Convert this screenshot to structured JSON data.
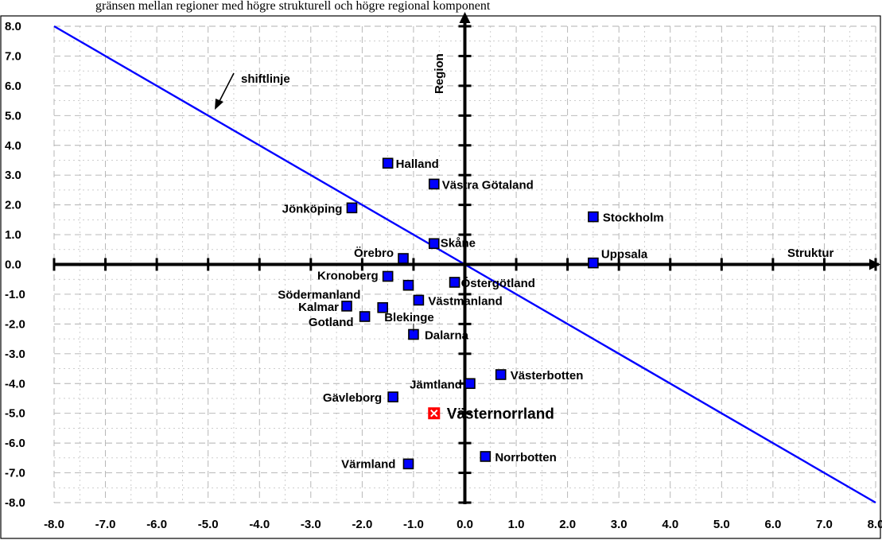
{
  "header": {
    "caption": "gränsen mellan regioner med högre strukturell och högre regional komponent"
  },
  "colors": {
    "shift_line": "#0000ff",
    "marker_fill": "#0000ff",
    "marker_stroke": "#000000",
    "highlight_fill": "#ff0000",
    "axis": "#000000",
    "grid": "#b0b0b0"
  },
  "chart_data": {
    "type": "scatter",
    "title": "",
    "xlabel": "Struktur",
    "ylabel": "Region",
    "xlim": [
      -8,
      8
    ],
    "ylim": [
      -8,
      8
    ],
    "grid": true,
    "x_ticks": [
      "-8.0",
      "-7.0",
      "-6.0",
      "-5.0",
      "-4.0",
      "-3.0",
      "-2.0",
      "-1.0",
      "0.0",
      "1.0",
      "2.0",
      "3.0",
      "4.0",
      "5.0",
      "6.0",
      "7.0",
      "8.0"
    ],
    "y_ticks": [
      "8.0",
      "7.0",
      "6.0",
      "5.0",
      "4.0",
      "3.0",
      "2.0",
      "1.0",
      "0.0",
      "-1.0",
      "-2.0",
      "-3.0",
      "-4.0",
      "-5.0",
      "-6.0",
      "-7.0",
      "-8.0"
    ],
    "points": [
      {
        "label": "Halland",
        "x": -1.5,
        "y": 3.4
      },
      {
        "label": "Västra Götaland",
        "x": -0.6,
        "y": 2.7
      },
      {
        "label": "Jönköping",
        "x": -2.2,
        "y": 1.9
      },
      {
        "label": "Stockholm",
        "x": 2.5,
        "y": 1.6
      },
      {
        "label": "Skåne",
        "x": -0.6,
        "y": 0.7
      },
      {
        "label": "Örebro",
        "x": -1.2,
        "y": 0.2
      },
      {
        "label": "Uppsala",
        "x": 2.5,
        "y": 0.05
      },
      {
        "label": "Kronoberg",
        "x": -1.5,
        "y": -0.4
      },
      {
        "label": "Södermanland",
        "x": -1.1,
        "y": -0.7
      },
      {
        "label": "Östergötland",
        "x": -0.2,
        "y": -0.6
      },
      {
        "label": "Västmanland",
        "x": -0.9,
        "y": -1.2
      },
      {
        "label": "Kalmar",
        "x": -2.3,
        "y": -1.4
      },
      {
        "label": "Blekinge",
        "x": -1.6,
        "y": -1.45
      },
      {
        "label": "Gotland",
        "x": -1.95,
        "y": -1.75
      },
      {
        "label": "Dalarna",
        "x": -1.0,
        "y": -2.35
      },
      {
        "label": "Västerbotten",
        "x": 0.7,
        "y": -3.7
      },
      {
        "label": "Jämtland",
        "x": 0.1,
        "y": -4.0
      },
      {
        "label": "Gävleborg",
        "x": -1.4,
        "y": -4.45
      },
      {
        "label": "Västernorrland",
        "x": -0.6,
        "y": -5.0,
        "highlight": true
      },
      {
        "label": "Norrbotten",
        "x": 0.4,
        "y": -6.45
      },
      {
        "label": "Värmland",
        "x": -1.1,
        "y": -6.7
      }
    ],
    "shift_line": {
      "label": "shiftlinje",
      "x": [
        -8,
        8
      ],
      "y": [
        8,
        -8
      ]
    }
  }
}
